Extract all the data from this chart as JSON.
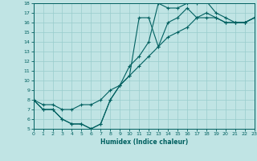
{
  "title": "",
  "xlabel": "Humidex (Indice chaleur)",
  "ylabel": "",
  "bg_color": "#c0e4e4",
  "line_color": "#006060",
  "grid_color": "#98cccc",
  "xlim": [
    0,
    23
  ],
  "ylim": [
    5,
    18
  ],
  "xticks": [
    0,
    1,
    2,
    3,
    4,
    5,
    6,
    7,
    8,
    9,
    10,
    11,
    12,
    13,
    14,
    15,
    16,
    17,
    18,
    19,
    20,
    21,
    22,
    23
  ],
  "yticks": [
    5,
    6,
    7,
    8,
    9,
    10,
    11,
    12,
    13,
    14,
    15,
    16,
    17,
    18
  ],
  "line1_x": [
    0,
    1,
    2,
    3,
    4,
    5,
    6,
    7,
    8,
    9,
    10,
    11,
    12,
    13,
    14,
    15,
    16,
    17,
    18,
    19,
    20,
    21,
    22,
    23
  ],
  "line1_y": [
    8,
    7,
    7,
    6,
    5.5,
    5.5,
    5,
    5.5,
    8,
    9.5,
    10.5,
    16.5,
    16.5,
    13.5,
    16,
    16.5,
    17.5,
    16.5,
    17,
    16.5,
    16,
    16,
    16,
    16.5
  ],
  "line2_x": [
    0,
    1,
    2,
    3,
    4,
    5,
    6,
    7,
    8,
    9,
    10,
    11,
    12,
    13,
    14,
    15,
    16,
    17,
    18,
    19,
    20,
    21,
    22,
    23
  ],
  "line2_y": [
    8,
    7,
    7,
    6,
    5.5,
    5.5,
    5,
    5.5,
    8,
    9.5,
    11.5,
    12.5,
    14,
    18,
    17.5,
    17.5,
    18,
    18,
    18.2,
    17,
    16.5,
    16,
    16,
    16.5
  ],
  "line3_x": [
    0,
    1,
    2,
    3,
    4,
    5,
    6,
    7,
    8,
    9,
    10,
    11,
    12,
    13,
    14,
    15,
    16,
    17,
    18,
    19,
    20,
    21,
    22,
    23
  ],
  "line3_y": [
    8,
    7.5,
    7.5,
    7.0,
    7.0,
    7.5,
    7.5,
    8.0,
    9.0,
    9.5,
    10.5,
    11.5,
    12.5,
    13.5,
    14.5,
    15.0,
    15.5,
    16.5,
    16.5,
    16.5,
    16.0,
    16.0,
    16.0,
    16.5
  ]
}
